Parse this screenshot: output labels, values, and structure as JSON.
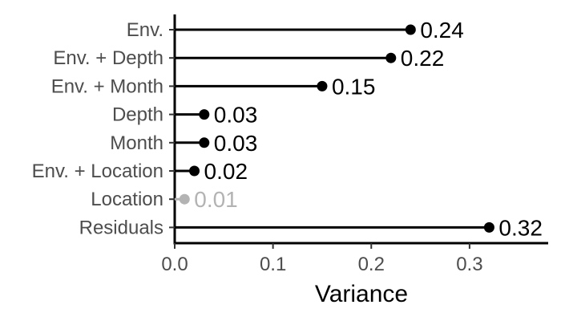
{
  "chart_data": {
    "type": "lollipop",
    "title": "",
    "xlabel": "Variance",
    "ylabel": "",
    "xlim": [
      0,
      0.38
    ],
    "x_ticks": [
      0.0,
      0.1,
      0.2,
      0.3
    ],
    "x_tick_labels": [
      "0.0",
      "0.1",
      "0.2",
      "0.3"
    ],
    "grid": false,
    "legend": "none",
    "categories": [
      "Env.",
      "Env. + Depth",
      "Env. + Month",
      "Depth",
      "Month",
      "Env. + Location",
      "Location",
      "Residuals"
    ],
    "values": [
      0.24,
      0.22,
      0.15,
      0.03,
      0.03,
      0.02,
      0.01,
      0.32
    ],
    "value_labels": [
      "0.24",
      "0.22",
      "0.15",
      "0.03",
      "0.03",
      "0.02",
      "0.01",
      "0.32"
    ],
    "point_colors": [
      "#000000",
      "#000000",
      "#000000",
      "#000000",
      "#000000",
      "#000000",
      "#b3b3b3",
      "#000000"
    ]
  }
}
